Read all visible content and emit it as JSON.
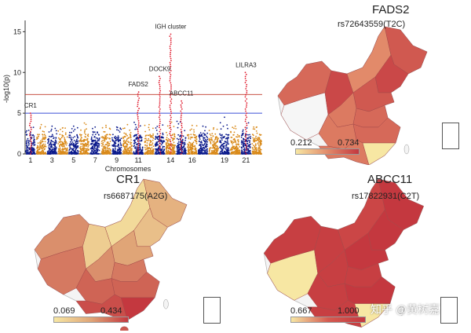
{
  "chart_data": [
    {
      "type": "scatter",
      "subtype": "manhattan",
      "title": "",
      "xlabel": "Chromosomes",
      "ylabel": "-log10(p)",
      "ylim": [
        0,
        16
      ],
      "yticks": [
        0,
        5,
        10,
        15
      ],
      "xtick_labels": [
        "1",
        "3",
        "5",
        "7",
        "9",
        "11",
        "14",
        "16",
        "19",
        "21"
      ],
      "chromosomes": [
        {
          "chr": "1",
          "peak": 5.0
        },
        {
          "chr": "2",
          "peak": 3.6
        },
        {
          "chr": "3",
          "peak": 3.4
        },
        {
          "chr": "4",
          "peak": 3.2
        },
        {
          "chr": "5",
          "peak": 3.4
        },
        {
          "chr": "6",
          "peak": 3.8
        },
        {
          "chr": "7",
          "peak": 3.3
        },
        {
          "chr": "8",
          "peak": 3.5
        },
        {
          "chr": "9",
          "peak": 3.3
        },
        {
          "chr": "10",
          "peak": 3.6
        },
        {
          "chr": "11",
          "peak": 7.6
        },
        {
          "chr": "12",
          "peak": 3.6
        },
        {
          "chr": "13",
          "peak": 9.5
        },
        {
          "chr": "14",
          "peak": 14.7
        },
        {
          "chr": "15",
          "peak": 6.5
        },
        {
          "chr": "16",
          "peak": 3.5
        },
        {
          "chr": "17",
          "peak": 3.4
        },
        {
          "chr": "18",
          "peak": 3.2
        },
        {
          "chr": "19",
          "peak": 4.5
        },
        {
          "chr": "20",
          "peak": 3.4
        },
        {
          "chr": "21",
          "peak": 10.0
        },
        {
          "chr": "22",
          "peak": 3.3
        }
      ],
      "thresholds": [
        {
          "value": 7.3,
          "color": "#c0392b"
        },
        {
          "value": 5.0,
          "color": "#3b4fd6"
        }
      ],
      "colors": [
        "#0b1a8c",
        "#d98a1a"
      ],
      "highlight_color": "#e0192b",
      "annotations": [
        {
          "label": "CR1",
          "chr": "1",
          "value": 5.0
        },
        {
          "label": "FADS2",
          "chr": "11",
          "value": 7.6
        },
        {
          "label": "DOCK9",
          "chr": "13",
          "value": 9.5
        },
        {
          "label": "IGH cluster",
          "chr": "14",
          "value": 14.7
        },
        {
          "label": "ABCC11",
          "chr": "15",
          "value": 6.5
        },
        {
          "label": "LILRA3",
          "chr": "21",
          "value": 10.0
        }
      ]
    },
    {
      "type": "choropleth",
      "title": "FADS2",
      "subtitle": "rs72643559(T2C)",
      "legend_min": "0.212",
      "legend_max": "0.734",
      "colors": {
        "low": "#f7e7a3",
        "mid": "#e28a6a",
        "high": "#c4383f"
      }
    },
    {
      "type": "choropleth",
      "title": "CR1",
      "subtitle": "rs6687175(A2G)",
      "legend_min": "0.069",
      "legend_max": "0.434",
      "colors": {
        "low": "#f7e7a3",
        "mid": "#e0a577",
        "high": "#c4383f"
      }
    },
    {
      "type": "choropleth",
      "title": "ABCC11",
      "subtitle": "rs17822931(C2T)",
      "legend_min": "0.667",
      "legend_max": "1.000",
      "colors": {
        "low": "#f7e7a3",
        "mid": "#d55a50",
        "high": "#c4383f"
      }
    }
  ],
  "watermark": "知乎 @黄树嘉"
}
